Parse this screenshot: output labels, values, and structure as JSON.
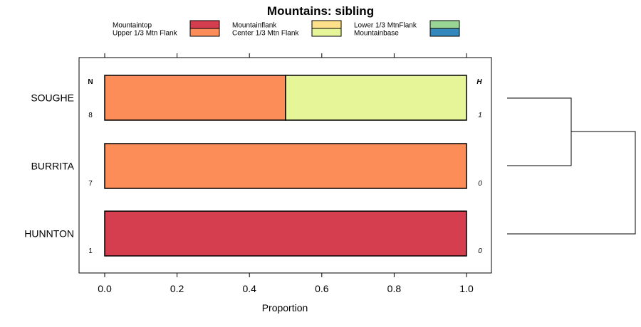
{
  "chart_data": {
    "type": "bar",
    "orientation": "horizontal",
    "stacked": true,
    "title": "Mountains: sibling",
    "xlabel": "Proportion",
    "ylabel": "",
    "xlim": [
      0,
      1
    ],
    "xticks": [
      "0.0",
      "0.2",
      "0.4",
      "0.6",
      "0.8",
      "1.0"
    ],
    "legend": [
      {
        "name": "Mountaintop",
        "color": "#d53e4f"
      },
      {
        "name": "Upper 1/3 Mtn Flank",
        "color": "#fc8d59"
      },
      {
        "name": "Mountainflank",
        "color": "#fee08b"
      },
      {
        "name": "Center 1/3 Mtn Flank",
        "color": "#e6f598"
      },
      {
        "name": "Lower 1/3 MtnFlank",
        "color": "#99d594"
      },
      {
        "name": "Mountainbase",
        "color": "#3288bd"
      }
    ],
    "column_headers": {
      "left": "N",
      "right": "H"
    },
    "categories": [
      "SOUGHE",
      "BURRITA",
      "HUNNTON"
    ],
    "n_values": [
      "8",
      "7",
      "1"
    ],
    "h_values": [
      "1",
      "0",
      "0"
    ],
    "series": [
      {
        "name": "Mountaintop",
        "values": [
          0,
          0,
          1
        ]
      },
      {
        "name": "Upper 1/3 Mtn Flank",
        "values": [
          0.5,
          1,
          0
        ]
      },
      {
        "name": "Mountainflank",
        "values": [
          0,
          0,
          0
        ]
      },
      {
        "name": "Center 1/3 Mtn Flank",
        "values": [
          0.5,
          0,
          0
        ]
      },
      {
        "name": "Lower 1/3 MtnFlank",
        "values": [
          0,
          0,
          0
        ]
      },
      {
        "name": "Mountainbase",
        "values": [
          0,
          0,
          0
        ]
      }
    ],
    "dendrogram": "SOUGHE and BURRITA join first; HUNNTON joins last"
  }
}
